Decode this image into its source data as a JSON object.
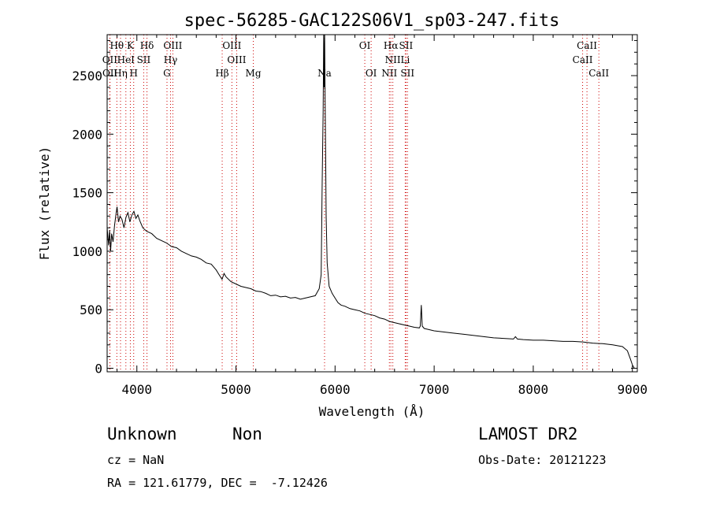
{
  "chart_data": {
    "type": "line",
    "title": "spec-56285-GAC122S06V1_sp03-247.fits",
    "xlabel": "Wavelength (Å)",
    "ylabel": "Flux (relative)",
    "xlim": [
      3700,
      9050
    ],
    "ylim": [
      -30,
      2850
    ],
    "xticks": [
      "4000",
      "5000",
      "6000",
      "7000",
      "8000",
      "9000"
    ],
    "yticks": [
      "0",
      "500",
      "1000",
      "1500",
      "2000",
      "2500"
    ],
    "line_color": "#000000",
    "marker_color": "#cc0000",
    "series": [
      {
        "values": [
          [
            3700,
            1200
          ],
          [
            3715,
            1050
          ],
          [
            3725,
            1180
          ],
          [
            3735,
            1000
          ],
          [
            3745,
            1150
          ],
          [
            3760,
            1080
          ],
          [
            3775,
            1220
          ],
          [
            3790,
            1320
          ],
          [
            3800,
            1380
          ],
          [
            3815,
            1250
          ],
          [
            3830,
            1300
          ],
          [
            3850,
            1270
          ],
          [
            3870,
            1200
          ],
          [
            3890,
            1290
          ],
          [
            3910,
            1330
          ],
          [
            3930,
            1250
          ],
          [
            3950,
            1310
          ],
          [
            3970,
            1340
          ],
          [
            3990,
            1280
          ],
          [
            4010,
            1310
          ],
          [
            4030,
            1260
          ],
          [
            4060,
            1200
          ],
          [
            4100,
            1170
          ],
          [
            4150,
            1150
          ],
          [
            4200,
            1110
          ],
          [
            4250,
            1090
          ],
          [
            4300,
            1070
          ],
          [
            4350,
            1040
          ],
          [
            4400,
            1030
          ],
          [
            4450,
            1000
          ],
          [
            4500,
            980
          ],
          [
            4550,
            960
          ],
          [
            4600,
            950
          ],
          [
            4650,
            930
          ],
          [
            4700,
            900
          ],
          [
            4750,
            890
          ],
          [
            4800,
            840
          ],
          [
            4830,
            800
          ],
          [
            4860,
            760
          ],
          [
            4880,
            810
          ],
          [
            4900,
            780
          ],
          [
            4950,
            740
          ],
          [
            5000,
            720
          ],
          [
            5050,
            700
          ],
          [
            5100,
            690
          ],
          [
            5150,
            680
          ],
          [
            5200,
            660
          ],
          [
            5250,
            655
          ],
          [
            5300,
            640
          ],
          [
            5350,
            620
          ],
          [
            5400,
            625
          ],
          [
            5450,
            610
          ],
          [
            5500,
            615
          ],
          [
            5550,
            600
          ],
          [
            5600,
            605
          ],
          [
            5650,
            590
          ],
          [
            5700,
            600
          ],
          [
            5750,
            610
          ],
          [
            5800,
            620
          ],
          [
            5840,
            680
          ],
          [
            5860,
            800
          ],
          [
            5870,
            1600
          ],
          [
            5880,
            2200
          ],
          [
            5885,
            2850
          ],
          [
            5890,
            2400
          ],
          [
            5895,
            2850
          ],
          [
            5900,
            2300
          ],
          [
            5905,
            1800
          ],
          [
            5910,
            1300
          ],
          [
            5920,
            900
          ],
          [
            5940,
            700
          ],
          [
            5970,
            640
          ],
          [
            6000,
            600
          ],
          [
            6030,
            560
          ],
          [
            6060,
            540
          ],
          [
            6100,
            530
          ],
          [
            6150,
            510
          ],
          [
            6200,
            500
          ],
          [
            6250,
            490
          ],
          [
            6300,
            470
          ],
          [
            6350,
            460
          ],
          [
            6400,
            450
          ],
          [
            6450,
            430
          ],
          [
            6500,
            420
          ],
          [
            6550,
            400
          ],
          [
            6600,
            390
          ],
          [
            6650,
            380
          ],
          [
            6700,
            370
          ],
          [
            6750,
            360
          ],
          [
            6800,
            350
          ],
          [
            6850,
            345
          ],
          [
            6860,
            360
          ],
          [
            6870,
            540
          ],
          [
            6880,
            360
          ],
          [
            6900,
            340
          ],
          [
            6950,
            330
          ],
          [
            7000,
            320
          ],
          [
            7100,
            310
          ],
          [
            7200,
            300
          ],
          [
            7300,
            290
          ],
          [
            7400,
            280
          ],
          [
            7500,
            270
          ],
          [
            7600,
            260
          ],
          [
            7700,
            255
          ],
          [
            7800,
            250
          ],
          [
            7820,
            270
          ],
          [
            7840,
            250
          ],
          [
            7900,
            245
          ],
          [
            8000,
            240
          ],
          [
            8100,
            240
          ],
          [
            8200,
            235
          ],
          [
            8300,
            230
          ],
          [
            8400,
            230
          ],
          [
            8500,
            225
          ],
          [
            8600,
            215
          ],
          [
            8700,
            210
          ],
          [
            8800,
            200
          ],
          [
            8900,
            185
          ],
          [
            8950,
            150
          ],
          [
            8980,
            80
          ],
          [
            9000,
            30
          ],
          [
            9020,
            0
          ]
        ]
      }
    ],
    "lines": [
      {
        "label": "Hθ",
        "x": 3798,
        "row": 0
      },
      {
        "label": "K",
        "x": 3934,
        "row": 0
      },
      {
        "label": "Hδ",
        "x": 4102,
        "row": 0
      },
      {
        "label": "OIII",
        "x": 4363,
        "row": 0
      },
      {
        "label": "OIII",
        "x": 4959,
        "row": 0
      },
      {
        "label": "OI",
        "x": 6300,
        "row": 0
      },
      {
        "label": "Hα",
        "x": 6563,
        "row": 0
      },
      {
        "label": "SII",
        "x": 6716,
        "row": 0
      },
      {
        "label": "CaII",
        "x": 8542,
        "row": 0
      },
      {
        "label": "OII",
        "x": 3727,
        "row": 1
      },
      {
        "label": "HeI",
        "x": 3889,
        "row": 1
      },
      {
        "label": "SII",
        "x": 4069,
        "row": 1
      },
      {
        "label": "Hγ",
        "x": 4340,
        "row": 1
      },
      {
        "label": "OIII",
        "x": 5007,
        "row": 1
      },
      {
        "label": "NII",
        "x": 6583,
        "row": 1
      },
      {
        "label": "Li",
        "x": 6708,
        "row": 1
      },
      {
        "label": "CaII",
        "x": 8498,
        "row": 1
      },
      {
        "label": "OII",
        "x": 3729,
        "row": 2
      },
      {
        "label": "Hη",
        "x": 3835,
        "row": 2
      },
      {
        "label": "H",
        "x": 3968,
        "row": 2
      },
      {
        "label": "G",
        "x": 4304,
        "row": 2
      },
      {
        "label": "Hβ",
        "x": 4861,
        "row": 2
      },
      {
        "label": "Mg",
        "x": 5175,
        "row": 2
      },
      {
        "label": "Na",
        "x": 5894,
        "row": 2
      },
      {
        "label": "OI",
        "x": 6364,
        "row": 2
      },
      {
        "label": "NII",
        "x": 6548,
        "row": 2
      },
      {
        "label": "SII",
        "x": 6731,
        "row": 2
      },
      {
        "label": "CaII",
        "x": 8662,
        "row": 2
      }
    ]
  },
  "info": {
    "class": "Unknown",
    "subclass": "Non",
    "survey": "LAMOST DR2",
    "cz": "cz = NaN",
    "obs_date": "Obs-Date: 20121223",
    "coords": "RA = 121.61779, DEC =  -7.12426"
  }
}
